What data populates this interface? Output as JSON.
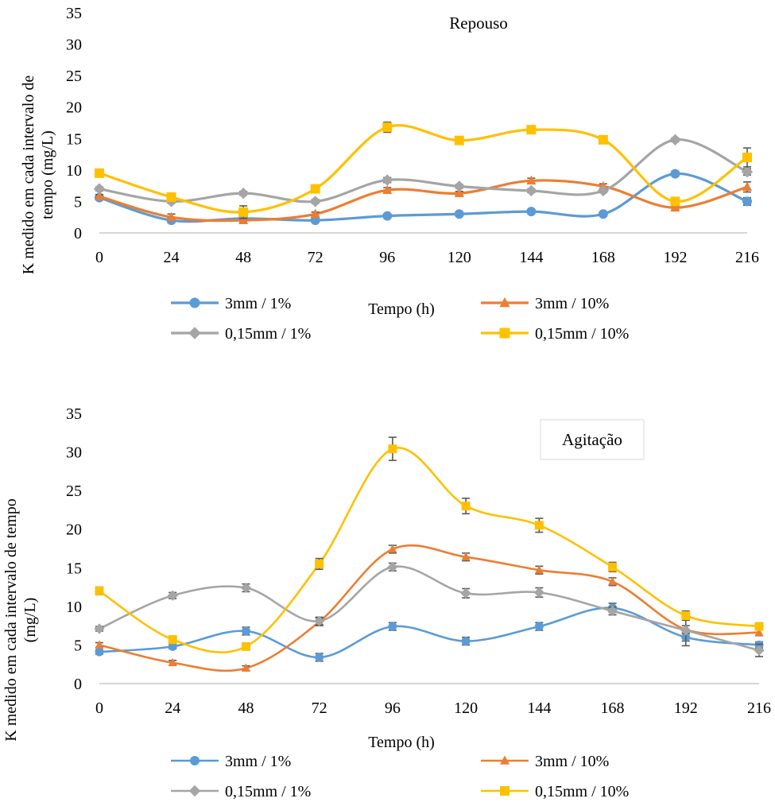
{
  "chart_data": [
    {
      "type": "line",
      "title": "Repouso",
      "ylabel": "K medido em cada intervalo de tempo (mg/L)",
      "ylabel_lines": [
        "K medido em cada intervalo de",
        "tempo (mg/L)"
      ],
      "xlabel": "Tempo (h)",
      "x": [
        0,
        24,
        48,
        72,
        96,
        120,
        144,
        168,
        192,
        216
      ],
      "ylim": [
        0,
        35
      ],
      "yticks": [
        0,
        5,
        10,
        15,
        20,
        25,
        30,
        35
      ],
      "grid": false,
      "legend_position": "bottom",
      "series": [
        {
          "name": "3mm / 1%",
          "color": "#5B9BD5",
          "marker": "circle",
          "values": [
            5.6,
            2.0,
            2.3,
            2.0,
            2.7,
            3.0,
            3.4,
            3.0,
            9.4,
            5.0
          ],
          "errors": [
            0.3,
            0.4,
            0.3,
            0.3,
            0.3,
            0.3,
            0.3,
            0.3,
            0.4,
            0.6
          ]
        },
        {
          "name": "3mm / 10%",
          "color": "#ED7D31",
          "marker": "triangle",
          "values": [
            5.8,
            2.5,
            2.0,
            3.0,
            6.8,
            6.3,
            8.3,
            7.4,
            4.0,
            7.3
          ],
          "errors": [
            0.3,
            0.5,
            0.3,
            0.3,
            0.4,
            0.3,
            0.4,
            0.4,
            0.3,
            0.8
          ]
        },
        {
          "name": "0,15mm / 1%",
          "color": "#A5A5A5",
          "marker": "diamond",
          "values": [
            7.0,
            5.0,
            6.3,
            5.0,
            8.4,
            7.4,
            6.7,
            6.7,
            14.8,
            9.7
          ],
          "errors": [
            0.3,
            0.3,
            0.3,
            0.3,
            0.4,
            0.3,
            0.3,
            0.3,
            0.3,
            0.5
          ]
        },
        {
          "name": "0,15mm / 10%",
          "color": "#FFC000",
          "marker": "square",
          "values": [
            9.5,
            5.7,
            3.3,
            7.0,
            16.8,
            14.7,
            16.4,
            14.8,
            5.0,
            12.0
          ],
          "errors": [
            0.3,
            0.3,
            1.0,
            0.3,
            0.8,
            0.3,
            0.3,
            0.3,
            0.3,
            1.5
          ]
        }
      ]
    },
    {
      "type": "line",
      "title": "Agitação",
      "ylabel": "K medido em cada intervalo de tempo (mg/L)",
      "ylabel_lines": [
        "K medido em cada intervalo de tempo",
        "(mg/L)"
      ],
      "xlabel": "Tempo (h)",
      "x": [
        0,
        24,
        48,
        72,
        96,
        120,
        144,
        168,
        192,
        216
      ],
      "ylim": [
        0,
        35
      ],
      "yticks": [
        0,
        5,
        10,
        15,
        20,
        25,
        30,
        35
      ],
      "grid": false,
      "legend_position": "bottom",
      "series": [
        {
          "name": "3mm / 1%",
          "color": "#5B9BD5",
          "marker": "circle",
          "values": [
            4.1,
            4.8,
            6.8,
            3.4,
            7.4,
            5.5,
            7.4,
            9.8,
            6.0,
            5.0
          ],
          "errors": [
            0.3,
            0.3,
            0.5,
            0.5,
            0.5,
            0.5,
            0.5,
            0.6,
            0.5,
            0.4
          ]
        },
        {
          "name": "3mm / 10%",
          "color": "#ED7D31",
          "marker": "triangle",
          "values": [
            5.0,
            2.7,
            2.0,
            8.0,
            17.4,
            16.4,
            14.7,
            13.2,
            7.0,
            6.6
          ],
          "errors": [
            0.3,
            0.3,
            0.3,
            0.5,
            0.5,
            0.5,
            0.5,
            0.5,
            0.5,
            0.4
          ]
        },
        {
          "name": "0,15mm / 1%",
          "color": "#A5A5A5",
          "marker": "diamond",
          "values": [
            7.1,
            11.4,
            12.4,
            8.1,
            15.1,
            11.7,
            11.8,
            9.4,
            6.9,
            4.3
          ],
          "errors": [
            0.3,
            0.4,
            0.5,
            0.5,
            0.5,
            0.6,
            0.6,
            0.5,
            2.0,
            0.8
          ]
        },
        {
          "name": "0,15mm / 10%",
          "color": "#FFC000",
          "marker": "square",
          "values": [
            12.0,
            5.7,
            4.8,
            15.5,
            30.4,
            23.0,
            20.5,
            15.1,
            8.8,
            7.4
          ],
          "errors": [
            0.5,
            0.3,
            0.3,
            0.7,
            1.5,
            1.0,
            0.9,
            0.6,
            0.6,
            0.3
          ]
        }
      ]
    }
  ]
}
